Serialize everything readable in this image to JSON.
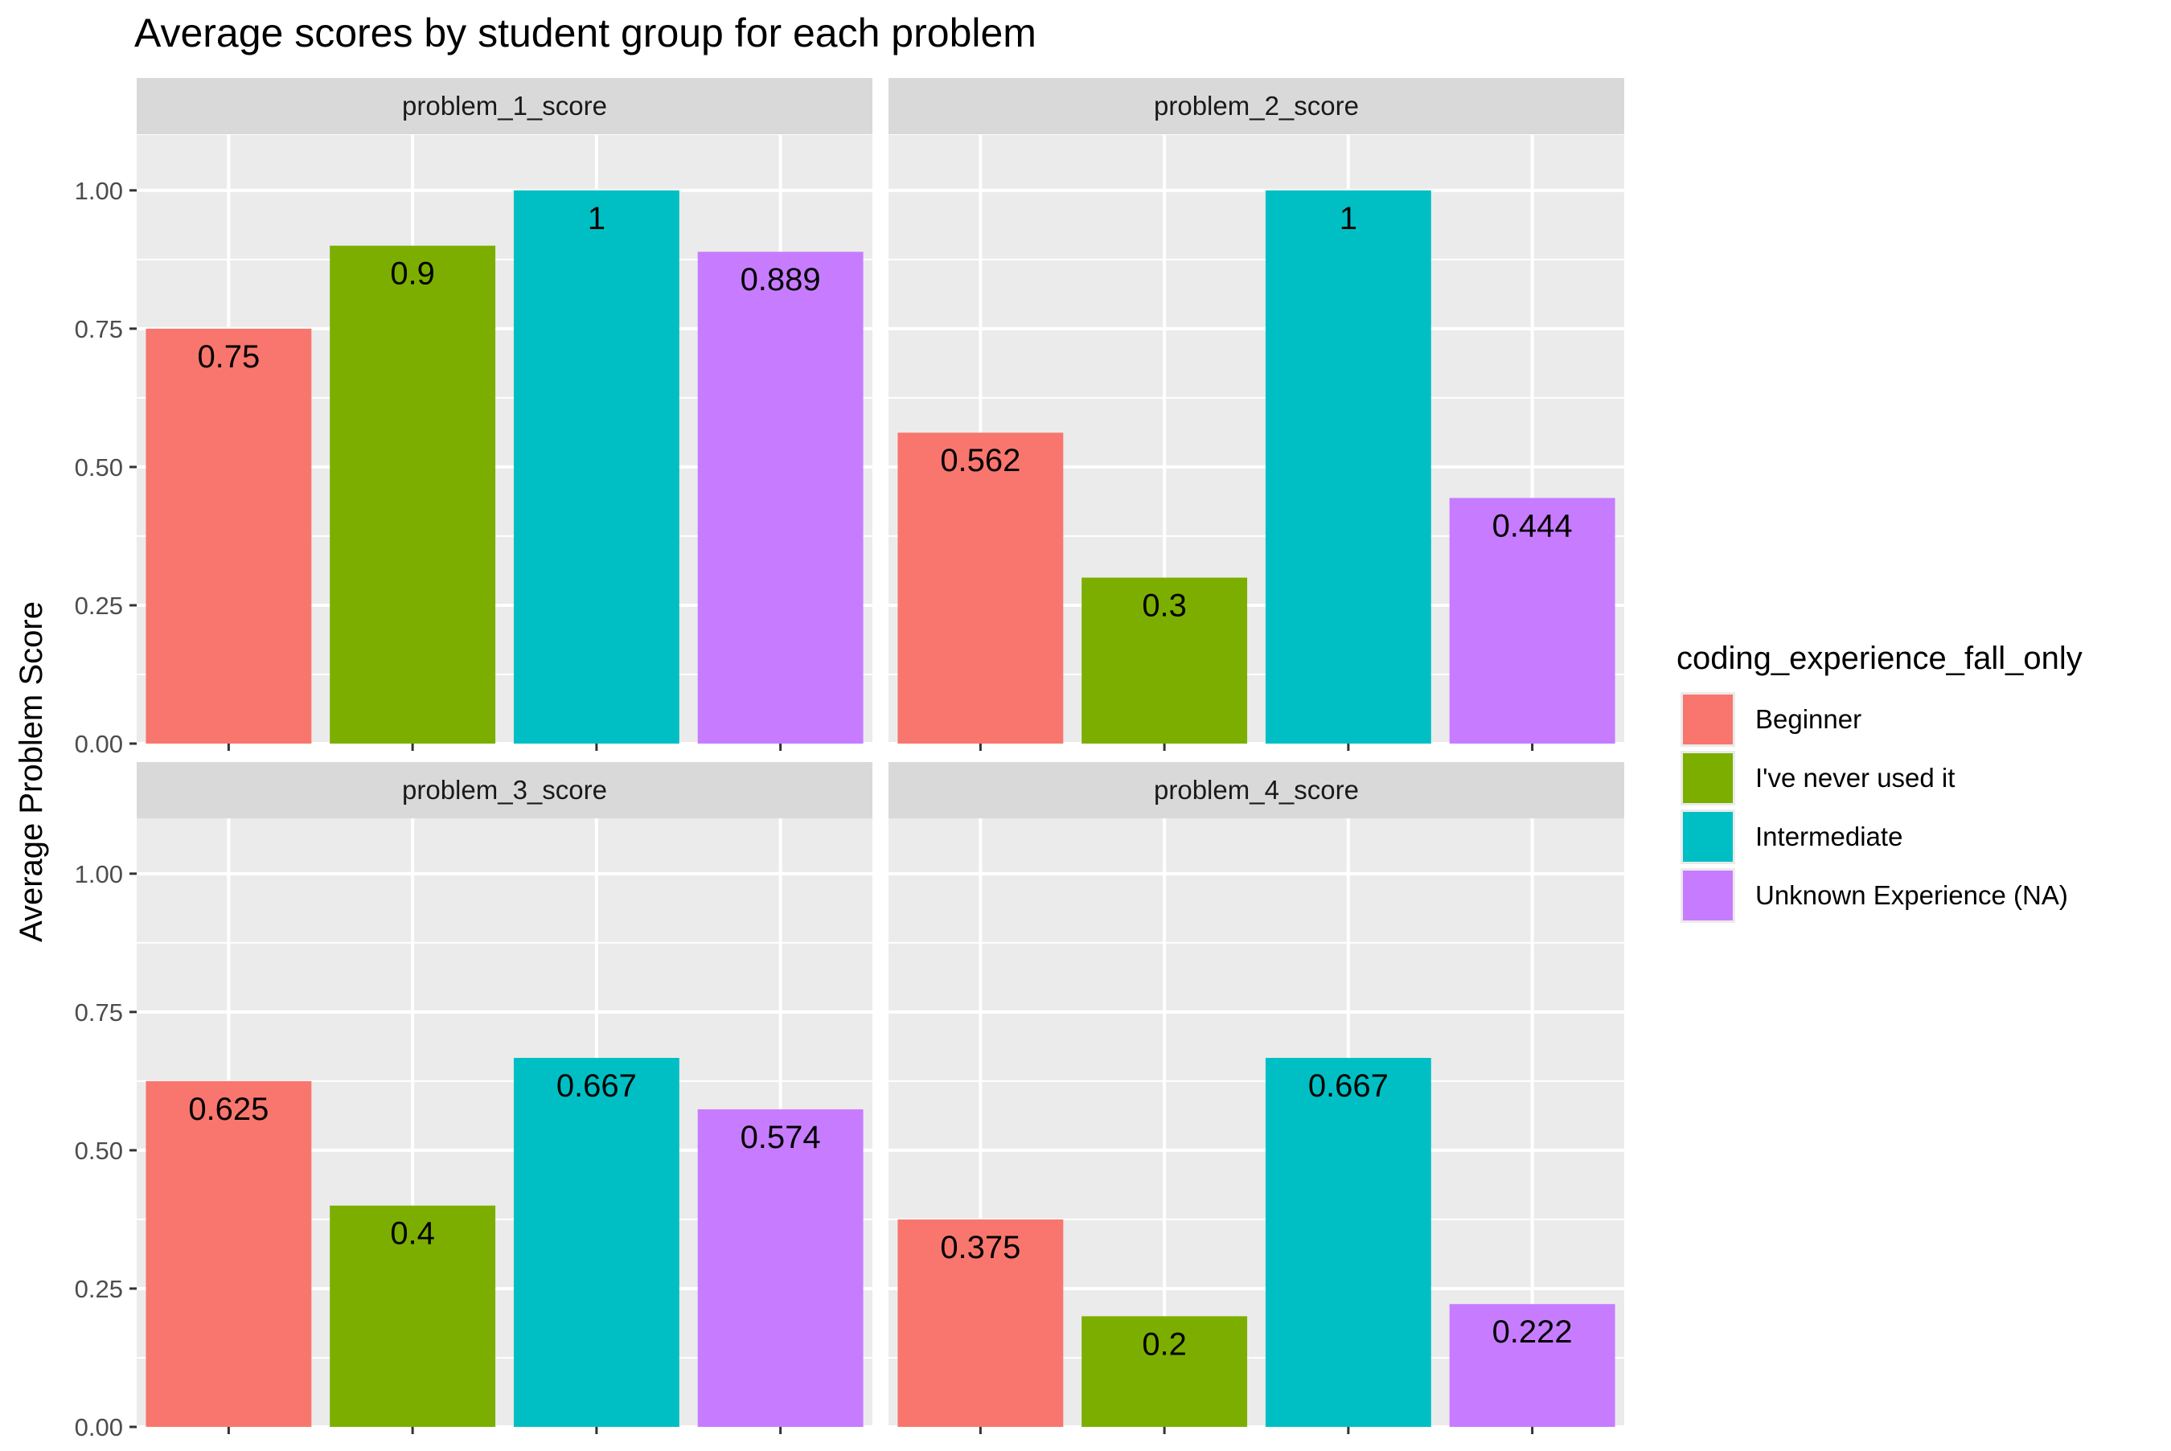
{
  "chart_data": {
    "type": "bar",
    "title": "Average scores by student group for each problem",
    "xlabel": "",
    "ylabel": "Average Problem Score",
    "ylim": [
      0,
      1.1
    ],
    "y_ticks": [
      "0.00",
      "0.25",
      "0.50",
      "0.75",
      "1.00"
    ],
    "y_tick_values": [
      0,
      0.25,
      0.5,
      0.75,
      1.0
    ],
    "grid": true,
    "legend": {
      "title": "coding_experience_fall_only",
      "placement": "right",
      "entries": [
        {
          "name": "Beginner",
          "color": "#F8766D"
        },
        {
          "name": "I've never used it",
          "color": "#7CAE00"
        },
        {
          "name": "Intermediate",
          "color": "#00BFC4"
        },
        {
          "name": "Unknown Experience (NA)",
          "color": "#C77CFF"
        }
      ]
    },
    "facets": [
      {
        "strip": "problem_1_score",
        "values": [
          0.75,
          0.9,
          1.0,
          0.889
        ],
        "labels": [
          "0.75",
          "0.9",
          "1",
          "0.889"
        ]
      },
      {
        "strip": "problem_2_score",
        "values": [
          0.562,
          0.3,
          1.0,
          0.444
        ],
        "labels": [
          "0.562",
          "0.3",
          "1",
          "0.444"
        ]
      },
      {
        "strip": "problem_3_score",
        "values": [
          0.625,
          0.4,
          0.667,
          0.574
        ],
        "labels": [
          "0.625",
          "0.4",
          "0.667",
          "0.574"
        ]
      },
      {
        "strip": "problem_4_score",
        "values": [
          0.375,
          0.2,
          0.667,
          0.222
        ],
        "labels": [
          "0.375",
          "0.2",
          "0.667",
          "0.222"
        ]
      }
    ],
    "colors": {
      "panel_bg": "#EBEBEB",
      "strip_bg": "#D9D9D9",
      "grid": "#FFFFFF",
      "axis_text": "#4D4D4D",
      "text": "#1A1A1A"
    }
  }
}
